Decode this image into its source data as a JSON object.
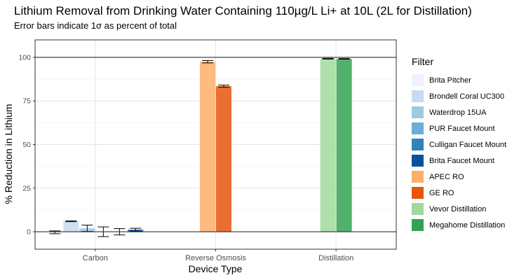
{
  "chart_data": {
    "type": "bar",
    "title": "Lithium Removal from Drinking Water Containing 110µg/L Li+ at 10L (2L for Distillation)",
    "subtitle": "Error bars indicate 1σ as percent of total",
    "xlabel": "Device Type",
    "ylabel": "% Reduction in Lithium",
    "categories": [
      "Carbon",
      "Reverse Osmosis",
      "Distillation"
    ],
    "ylim": [
      -10,
      110
    ],
    "yticks": [
      0,
      25,
      50,
      75,
      100
    ],
    "grid": true,
    "reference_lines": [
      0,
      100
    ],
    "legend": {
      "title": "Filter",
      "placement": "right"
    },
    "series": [
      {
        "name": "Brita Pitcher",
        "category": "Carbon",
        "value": -0.3,
        "error": 0.8,
        "color": "#eff3ff"
      },
      {
        "name": "Brondell Coral UC300",
        "category": "Carbon",
        "value": 6.0,
        "error": 0.2,
        "color": "#c6dbef"
      },
      {
        "name": "Waterdrop 15UA",
        "category": "Carbon",
        "value": 2.0,
        "error": 1.8,
        "color": "#9ecae1"
      },
      {
        "name": "PUR Faucet Mount",
        "category": "Carbon",
        "value": 0.0,
        "error": 2.8,
        "color": "#6baed6"
      },
      {
        "name": "Culligan Faucet Mount",
        "category": "Carbon",
        "value": 0.0,
        "error": 1.8,
        "color": "#3182bd"
      },
      {
        "name": "Brita Faucet Mount",
        "category": "Carbon",
        "value": 1.2,
        "error": 0.8,
        "color": "#08519c"
      },
      {
        "name": "APEC RO",
        "category": "Reverse Osmosis",
        "value": 97.5,
        "error": 0.7,
        "color": "#fdae6b"
      },
      {
        "name": "GE RO",
        "category": "Reverse Osmosis",
        "value": 83.5,
        "error": 0.6,
        "color": "#e6550d"
      },
      {
        "name": "Vevor Distillation",
        "category": "Distillation",
        "value": 99.2,
        "error": 0.2,
        "color": "#a1d99b"
      },
      {
        "name": "Megahome Distillation",
        "category": "Distillation",
        "value": 99.1,
        "error": 0.2,
        "color": "#31a354"
      }
    ]
  }
}
